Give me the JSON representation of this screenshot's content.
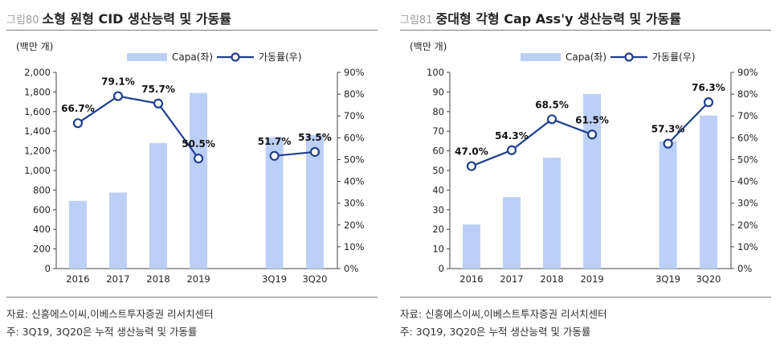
{
  "charts": [
    {
      "fig_num": "그림80",
      "title": "소형 원형 CID 생산능력 및 가동률",
      "source": "자료: 신흥에스이씨,이베스트투자증권 리서치센터",
      "note": "주: 3Q19, 3Q20은 누적 생산능력 및 가동률",
      "chart_data": {
        "type": "bar",
        "categories": [
          "2016",
          "2017",
          "2018",
          "2019",
          "3Q19",
          "3Q20"
        ],
        "y_unit_label": "(백만 개)",
        "series": [
          {
            "name": "Capa(좌)",
            "type": "bar",
            "axis": "left",
            "color": "#bcd0f7",
            "values": [
              690,
              775,
              1280,
              1790,
              1340,
              1360
            ]
          },
          {
            "name": "가동률(우)",
            "type": "line",
            "axis": "right",
            "color": "#1f3f8f",
            "values": [
              66.7,
              79.1,
              75.7,
              50.5,
              51.7,
              53.5
            ],
            "labels": [
              "66.7%",
              "79.1%",
              "75.7%",
              "50.5%",
              "51.7%",
              "53.5%"
            ]
          }
        ],
        "ylim_left": [
          0,
          2000
        ],
        "ylim_right": [
          0,
          90
        ],
        "left_ticks": [
          "0",
          "200",
          "400",
          "600",
          "800",
          "1,000",
          "1,200",
          "1,400",
          "1,600",
          "1,800",
          "2,000"
        ],
        "right_ticks": [
          "0%",
          "10%",
          "20%",
          "30%",
          "40%",
          "50%",
          "60%",
          "70%",
          "80%",
          "90%"
        ],
        "legend_position": "top-center",
        "grid": false
      }
    },
    {
      "fig_num": "그림81",
      "title": "중대형 각형 Cap Ass'y 생산능력 및 가동률",
      "source": "자료: 신흥에스이씨,이베스트투자증권 리서치센터",
      "note": "주: 3Q19, 3Q20은 누적 생산능력 및 가동률",
      "chart_data": {
        "type": "bar",
        "categories": [
          "2016",
          "2017",
          "2018",
          "2019",
          "3Q19",
          "3Q20"
        ],
        "y_unit_label": "(백만 개)",
        "series": [
          {
            "name": "Capa(좌)",
            "type": "bar",
            "axis": "left",
            "color": "#bcd0f7",
            "values": [
              22.5,
              36.5,
              56.5,
              89,
              65,
              78
            ]
          },
          {
            "name": "가동률(우)",
            "type": "line",
            "axis": "right",
            "color": "#1f3f8f",
            "values": [
              47.0,
              54.3,
              68.5,
              61.5,
              57.3,
              76.3
            ],
            "labels": [
              "47.0%",
              "54.3%",
              "68.5%",
              "61.5%",
              "57.3%",
              "76.3%"
            ]
          }
        ],
        "ylim_left": [
          0,
          100
        ],
        "ylim_right": [
          0,
          90
        ],
        "left_ticks": [
          "0",
          "10",
          "20",
          "30",
          "40",
          "50",
          "60",
          "70",
          "80",
          "90",
          "100"
        ],
        "right_ticks": [
          "0%",
          "10%",
          "20%",
          "30%",
          "40%",
          "50%",
          "60%",
          "70%",
          "80%",
          "90%"
        ],
        "legend_position": "top-center",
        "grid": false
      }
    }
  ]
}
